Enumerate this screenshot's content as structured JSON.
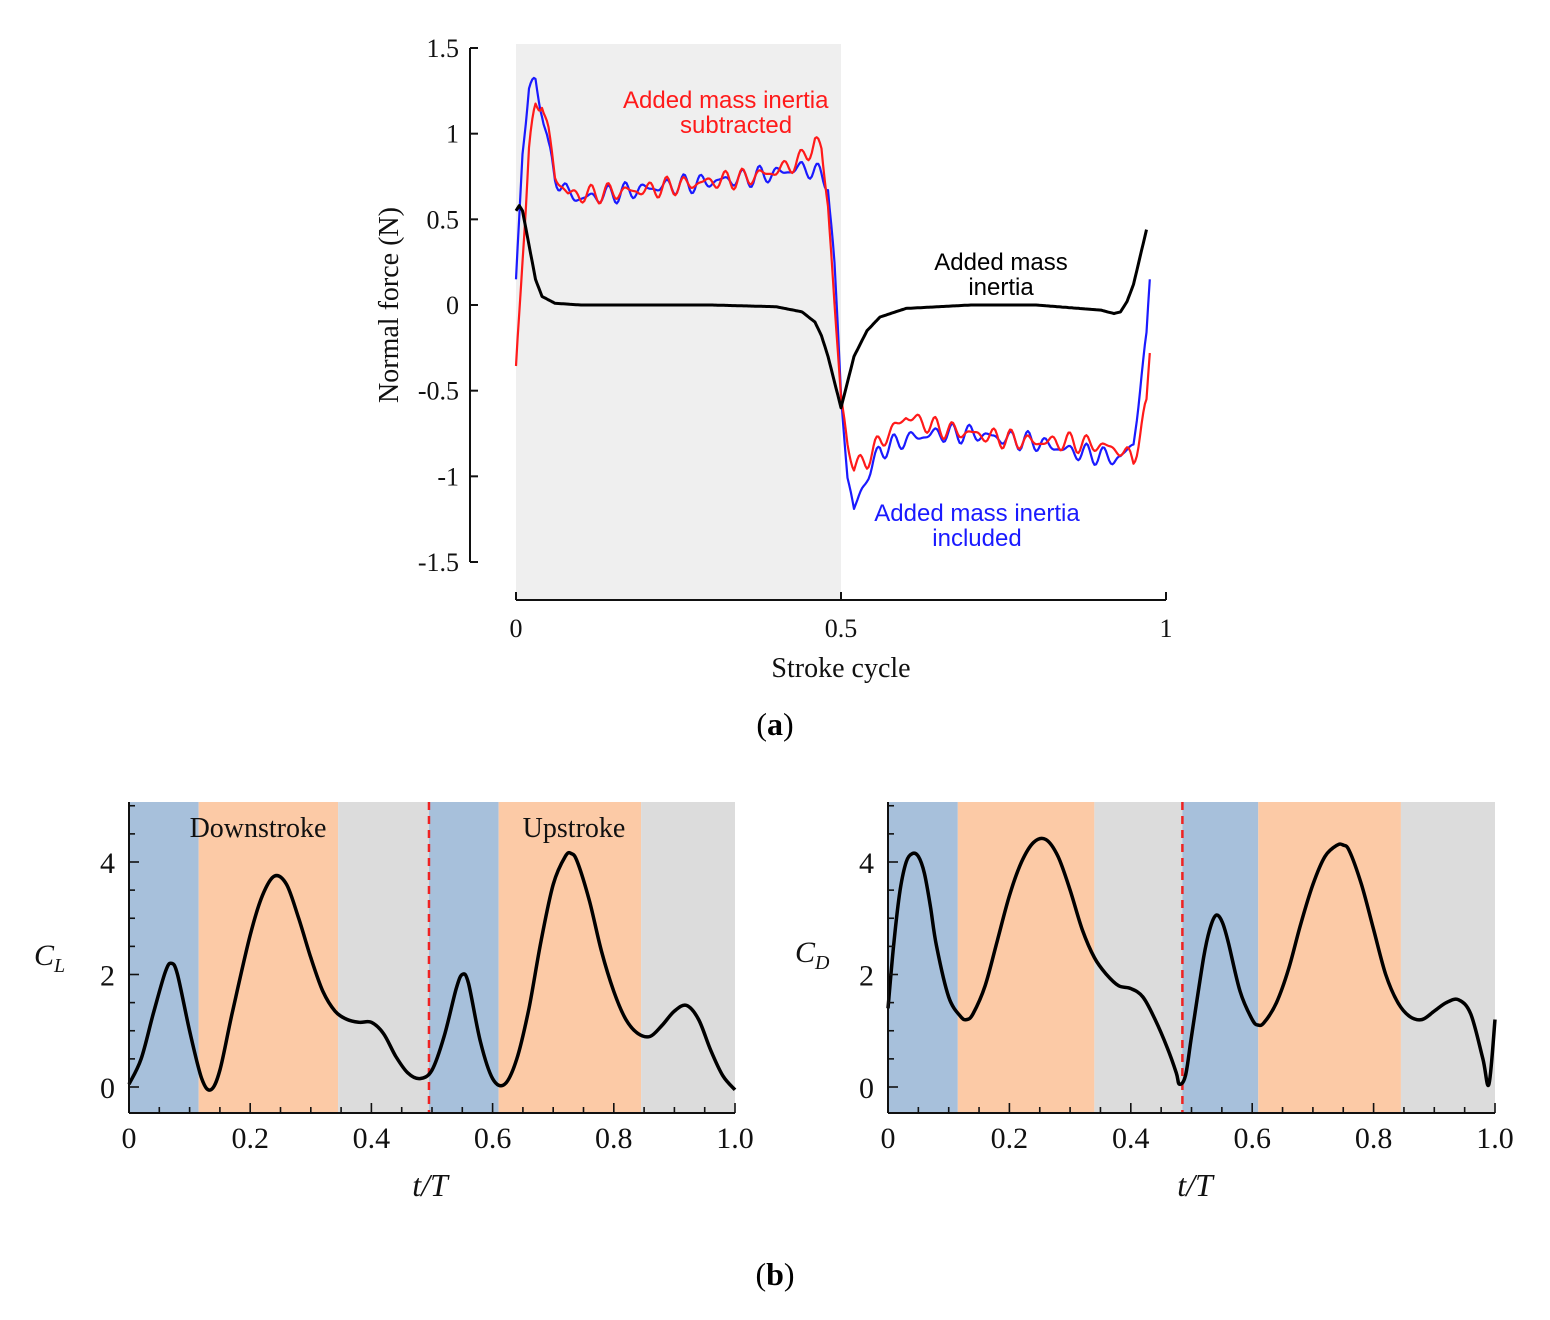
{
  "chart_data": [
    {
      "id": "a",
      "type": "line",
      "caption_letter": "a",
      "xlabel": "Stroke cycle",
      "ylabel": "Normal  force (N)",
      "xlim": [
        0,
        1
      ],
      "ylim": [
        -1.5,
        1.5
      ],
      "xticks": [
        "0",
        "0.5",
        "1"
      ],
      "yticks": [
        "1.5",
        "1",
        "0.5",
        "0",
        "-0.5",
        "-1",
        "-1.5"
      ],
      "shaded_region": [
        0,
        0.5
      ],
      "series": [
        {
          "name": "Added mass inertia included",
          "color": "#1a1aff",
          "x": [
            0.0,
            0.01,
            0.02,
            0.03,
            0.04,
            0.05,
            0.06,
            0.08,
            0.1,
            0.15,
            0.2,
            0.25,
            0.3,
            0.35,
            0.4,
            0.44,
            0.46,
            0.48,
            0.49,
            0.5,
            0.51,
            0.52,
            0.54,
            0.56,
            0.6,
            0.65,
            0.7,
            0.75,
            0.8,
            0.85,
            0.9,
            0.93,
            0.95,
            0.97,
            0.975
          ],
          "y": [
            0.15,
            0.9,
            1.25,
            1.3,
            1.15,
            0.9,
            0.75,
            0.65,
            0.62,
            0.65,
            0.68,
            0.7,
            0.72,
            0.74,
            0.77,
            0.8,
            0.78,
            0.72,
            0.2,
            -0.5,
            -1.0,
            -1.2,
            -1.0,
            -0.85,
            -0.78,
            -0.75,
            -0.75,
            -0.78,
            -0.8,
            -0.85,
            -0.88,
            -0.9,
            -0.8,
            -0.2,
            0.15
          ]
        },
        {
          "name": "Added mass inertia subtracted",
          "color": "#ff1a1a",
          "x": [
            0.0,
            0.01,
            0.02,
            0.03,
            0.04,
            0.05,
            0.06,
            0.08,
            0.1,
            0.15,
            0.2,
            0.25,
            0.3,
            0.35,
            0.4,
            0.44,
            0.46,
            0.47,
            0.48,
            0.49,
            0.5,
            0.51,
            0.52,
            0.54,
            0.56,
            0.6,
            0.65,
            0.7,
            0.75,
            0.8,
            0.85,
            0.9,
            0.93,
            0.95,
            0.97,
            0.975
          ],
          "y": [
            -0.4,
            0.3,
            0.9,
            1.15,
            1.2,
            1.0,
            0.75,
            0.65,
            0.64,
            0.66,
            0.67,
            0.7,
            0.72,
            0.74,
            0.78,
            0.85,
            0.95,
            0.9,
            0.6,
            0.0,
            -0.55,
            -0.8,
            -0.95,
            -0.9,
            -0.8,
            -0.65,
            -0.72,
            -0.75,
            -0.78,
            -0.8,
            -0.8,
            -0.82,
            -0.85,
            -0.9,
            -0.6,
            -0.28
          ]
        },
        {
          "name": "Added mass inertia",
          "color": "#000000",
          "x": [
            0.0,
            0.005,
            0.01,
            0.02,
            0.03,
            0.04,
            0.06,
            0.1,
            0.2,
            0.3,
            0.4,
            0.44,
            0.46,
            0.47,
            0.48,
            0.49,
            0.5,
            0.51,
            0.52,
            0.54,
            0.56,
            0.6,
            0.7,
            0.8,
            0.9,
            0.92,
            0.93,
            0.94,
            0.95,
            0.96,
            0.97
          ],
          "y": [
            0.55,
            0.58,
            0.55,
            0.35,
            0.15,
            0.05,
            0.01,
            0.0,
            0.0,
            0.0,
            -0.01,
            -0.04,
            -0.1,
            -0.18,
            -0.3,
            -0.45,
            -0.6,
            -0.45,
            -0.3,
            -0.15,
            -0.07,
            -0.02,
            0.0,
            0.0,
            -0.03,
            -0.05,
            -0.04,
            0.02,
            0.12,
            0.28,
            0.44
          ]
        }
      ],
      "annotations": [
        {
          "lines": [
            "Added mass inertia",
            "subtracted"
          ],
          "color": "#ff1a1a"
        },
        {
          "lines": [
            "Added mass",
            "inertia"
          ],
          "color": "#000000"
        },
        {
          "lines": [
            "Added mass inertia",
            "included"
          ],
          "color": "#1a1aff"
        }
      ]
    },
    {
      "id": "b-left",
      "type": "line",
      "caption_letter": "b",
      "ylabel_main": "C",
      "ylabel_sub": "L",
      "xlabel": "t/T",
      "xlim": [
        0,
        1
      ],
      "ylim": [
        -0.3,
        5.1
      ],
      "xticks": [
        "0",
        "0.2",
        "0.4",
        "0.6",
        "0.8",
        "1.0"
      ],
      "yticks": [
        "0",
        "2",
        "4"
      ],
      "phase_bands": [
        {
          "from": 0.0,
          "to": 0.115,
          "color": "#a7c0db"
        },
        {
          "from": 0.115,
          "to": 0.345,
          "color": "#fccaa6"
        },
        {
          "from": 0.345,
          "to": 0.495,
          "color": "#dcdcdc"
        },
        {
          "from": 0.495,
          "to": 0.61,
          "color": "#a7c0db"
        },
        {
          "from": 0.61,
          "to": 0.845,
          "color": "#fccaa6"
        },
        {
          "from": 0.845,
          "to": 1.0,
          "color": "#dcdcdc"
        }
      ],
      "divider_x": 0.495,
      "labels": [
        "Downstroke",
        "Upstroke"
      ],
      "series": [
        {
          "name": "C_L",
          "color": "#000000",
          "x": [
            0.0,
            0.02,
            0.04,
            0.06,
            0.07,
            0.08,
            0.1,
            0.12,
            0.135,
            0.15,
            0.17,
            0.2,
            0.22,
            0.24,
            0.26,
            0.28,
            0.3,
            0.32,
            0.34,
            0.36,
            0.38,
            0.4,
            0.42,
            0.44,
            0.46,
            0.48,
            0.5,
            0.52,
            0.54,
            0.55,
            0.56,
            0.58,
            0.6,
            0.62,
            0.64,
            0.66,
            0.68,
            0.7,
            0.72,
            0.73,
            0.74,
            0.76,
            0.78,
            0.8,
            0.82,
            0.84,
            0.86,
            0.88,
            0.9,
            0.92,
            0.94,
            0.96,
            0.98,
            1.0
          ],
          "y": [
            0.05,
            0.5,
            1.3,
            2.05,
            2.2,
            2.0,
            1.0,
            0.15,
            -0.05,
            0.3,
            1.3,
            2.7,
            3.4,
            3.75,
            3.6,
            3.0,
            2.3,
            1.7,
            1.35,
            1.2,
            1.15,
            1.15,
            0.95,
            0.55,
            0.25,
            0.15,
            0.3,
            0.9,
            1.75,
            2.0,
            1.85,
            0.8,
            0.15,
            0.05,
            0.5,
            1.4,
            2.6,
            3.6,
            4.1,
            4.15,
            4.0,
            3.3,
            2.4,
            1.7,
            1.2,
            0.95,
            0.9,
            1.1,
            1.35,
            1.45,
            1.2,
            0.65,
            0.2,
            -0.05
          ]
        }
      ]
    },
    {
      "id": "b-right",
      "type": "line",
      "ylabel_main": "C",
      "ylabel_sub": "D",
      "xlabel": "t/T",
      "xlim": [
        0,
        1
      ],
      "ylim": [
        -0.3,
        5.1
      ],
      "xticks": [
        "0",
        "0.2",
        "0.4",
        "0.6",
        "0.8",
        "1.0"
      ],
      "yticks": [
        "0",
        "2",
        "4"
      ],
      "phase_bands": [
        {
          "from": 0.0,
          "to": 0.115,
          "color": "#a7c0db"
        },
        {
          "from": 0.115,
          "to": 0.34,
          "color": "#fccaa6"
        },
        {
          "from": 0.34,
          "to": 0.485,
          "color": "#dcdcdc"
        },
        {
          "from": 0.485,
          "to": 0.61,
          "color": "#a7c0db"
        },
        {
          "from": 0.61,
          "to": 0.845,
          "color": "#fccaa6"
        },
        {
          "from": 0.845,
          "to": 1.0,
          "color": "#dcdcdc"
        }
      ],
      "divider_x": 0.485,
      "series": [
        {
          "name": "C_D",
          "color": "#000000",
          "x": [
            0.0,
            0.01,
            0.02,
            0.03,
            0.04,
            0.05,
            0.06,
            0.07,
            0.08,
            0.1,
            0.12,
            0.13,
            0.14,
            0.16,
            0.18,
            0.2,
            0.22,
            0.24,
            0.26,
            0.28,
            0.3,
            0.32,
            0.34,
            0.36,
            0.38,
            0.4,
            0.42,
            0.44,
            0.46,
            0.475,
            0.48,
            0.49,
            0.5,
            0.52,
            0.53,
            0.54,
            0.55,
            0.56,
            0.58,
            0.6,
            0.61,
            0.62,
            0.64,
            0.66,
            0.68,
            0.7,
            0.72,
            0.74,
            0.75,
            0.76,
            0.78,
            0.8,
            0.82,
            0.84,
            0.86,
            0.88,
            0.9,
            0.92,
            0.94,
            0.96,
            0.98,
            0.99,
            1.0
          ],
          "y": [
            1.4,
            2.6,
            3.5,
            4.0,
            4.15,
            4.1,
            3.8,
            3.2,
            2.5,
            1.6,
            1.25,
            1.2,
            1.3,
            1.8,
            2.6,
            3.4,
            4.0,
            4.35,
            4.4,
            4.1,
            3.5,
            2.8,
            2.3,
            2.0,
            1.8,
            1.75,
            1.6,
            1.2,
            0.7,
            0.25,
            0.05,
            0.2,
            0.9,
            2.3,
            2.8,
            3.05,
            2.95,
            2.6,
            1.7,
            1.2,
            1.1,
            1.15,
            1.5,
            2.1,
            2.9,
            3.6,
            4.1,
            4.3,
            4.3,
            4.2,
            3.6,
            2.8,
            2.0,
            1.5,
            1.25,
            1.2,
            1.35,
            1.5,
            1.55,
            1.3,
            0.5,
            0.05,
            1.2
          ]
        }
      ]
    }
  ]
}
